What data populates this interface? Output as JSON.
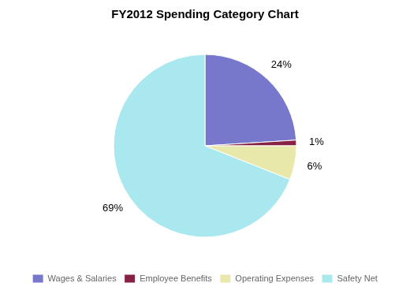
{
  "chart_data": {
    "type": "pie",
    "title": "FY2012 Spending Category Chart",
    "categories": [
      "Wages & Salaries",
      "Employee Benefits",
      "Operating Expenses",
      "Safety Net"
    ],
    "values": [
      24,
      1,
      6,
      69
    ],
    "value_labels": [
      "24%",
      "1%",
      "6%",
      "69%"
    ],
    "colors": [
      "#7777cc",
      "#882244",
      "#e8e8aa",
      "#aae8f0"
    ],
    "data_labels": true,
    "legend": "bottom"
  }
}
